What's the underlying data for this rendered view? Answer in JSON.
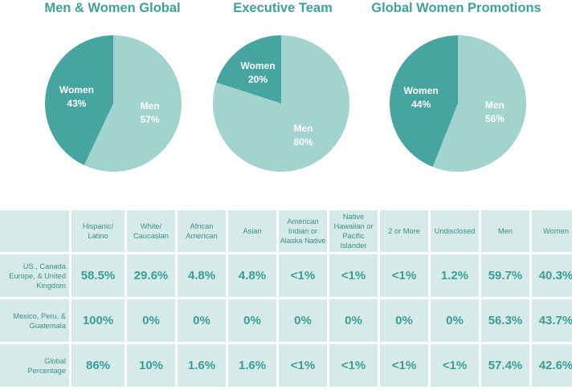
{
  "chart_data": [
    {
      "type": "pie",
      "title": "Men & Women Global",
      "slices": [
        {
          "label": "Women",
          "value_text": "43%",
          "value": 43,
          "color": "#47a5a0"
        },
        {
          "label": "Men",
          "value_text": "57%",
          "value": 57,
          "color": "#a3d3cf"
        }
      ]
    },
    {
      "type": "pie",
      "title": "Executive Team",
      "slices": [
        {
          "label": "Women",
          "value_text": "20%",
          "value": 20,
          "color": "#47a5a0"
        },
        {
          "label": "Men",
          "value_text": "80%",
          "value": 80,
          "color": "#a3d3cf"
        }
      ]
    },
    {
      "type": "pie",
      "title": "Global Women Promotions",
      "slices": [
        {
          "label": "Women",
          "value_text": "44%",
          "value": 44,
          "color": "#47a5a0"
        },
        {
          "label": "Men",
          "value_text": "56%",
          "value": 56,
          "color": "#a3d3cf"
        }
      ]
    },
    {
      "type": "table",
      "columns": [
        [
          "Hispanic/",
          "Latino"
        ],
        [
          "White/",
          "Caucasian"
        ],
        [
          "African",
          "American"
        ],
        [
          "Asian"
        ],
        [
          "American",
          "Indian or",
          "Alaska Native"
        ],
        [
          "Native",
          "Hawaiian or",
          "Pacific",
          "Islander"
        ],
        [
          "2 or More"
        ],
        [
          "Undisclosed"
        ],
        [
          "Men"
        ],
        [
          "Women"
        ]
      ],
      "rows": [
        {
          "label": [
            "US., Canada",
            "Europe, & United",
            "Kingdom"
          ],
          "values": [
            "58.5%",
            "29.6%",
            "4.8%",
            "4.8%",
            "<1%",
            "<1%",
            "<1%",
            "1.2%",
            "59.7%",
            "40.3%"
          ]
        },
        {
          "label": [
            "Mexico, Peru, &",
            "Guatemala"
          ],
          "values": [
            "100%",
            "0%",
            "0%",
            "0%",
            "0%",
            "0%",
            "0%",
            "0%",
            "56.3%",
            "43.7%"
          ]
        },
        {
          "label": [
            "Global",
            "Percentage"
          ],
          "values": [
            "86%",
            "10%",
            "1.6%",
            "1.6%",
            "<1%",
            "<1%",
            "<1%",
            "<1%",
            "57.4%",
            "42.6%"
          ]
        }
      ]
    }
  ]
}
